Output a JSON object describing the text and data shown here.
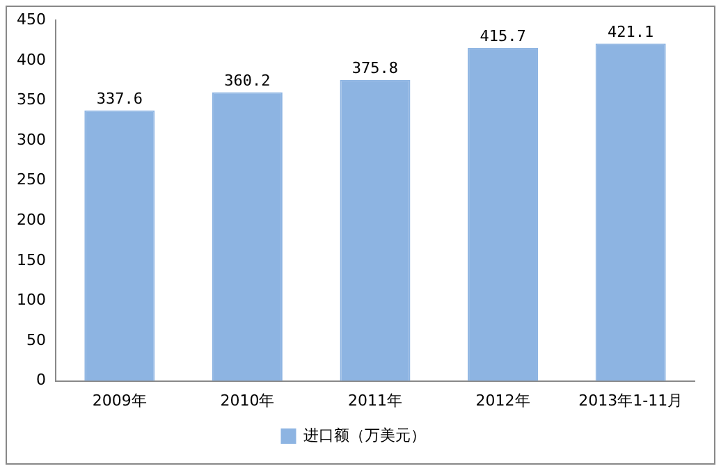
{
  "chart_data": {
    "type": "bar",
    "categories": [
      "2009年",
      "2010年",
      "2011年",
      "2012年",
      "2013年1-11月"
    ],
    "series": [
      {
        "name": "进口额（万美元）",
        "color": "#8db4e2",
        "values": [
          337.6,
          360.2,
          375.8,
          415.7,
          421.1
        ]
      }
    ],
    "ylim": [
      0,
      450
    ],
    "yticks": [
      0,
      50,
      100,
      150,
      200,
      250,
      300,
      350,
      400,
      450
    ],
    "grid": false,
    "legend": "bottom",
    "data_labels": true
  }
}
